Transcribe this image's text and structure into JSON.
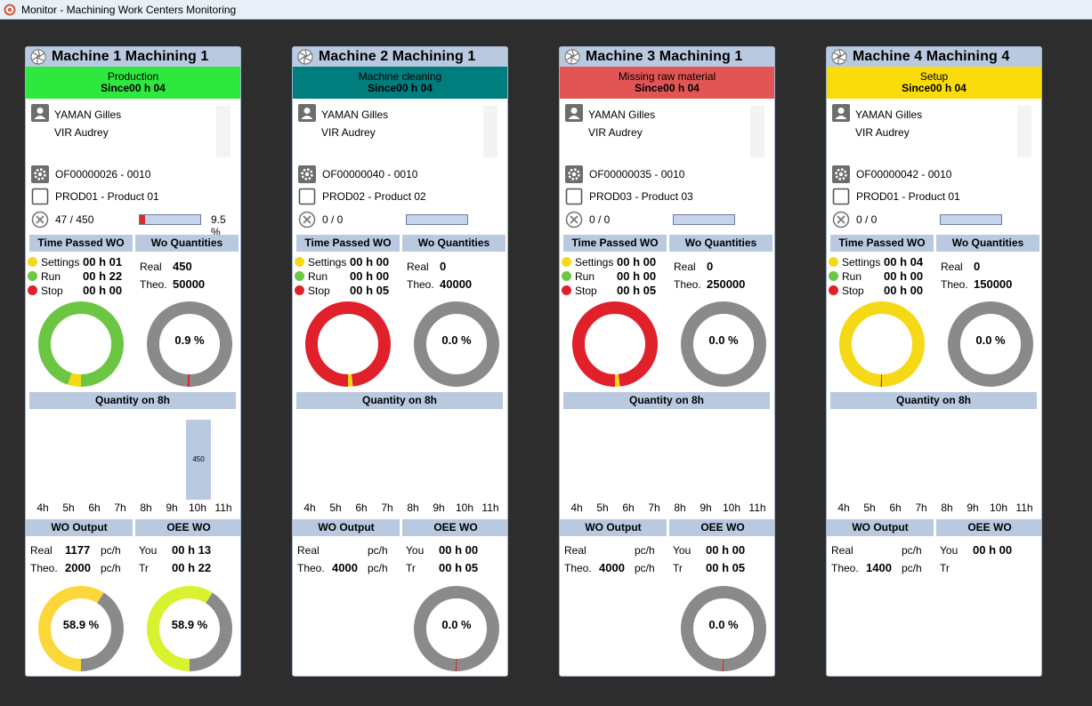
{
  "window": {
    "title": "Monitor - Machining Work Centers Monitoring"
  },
  "labels": {
    "time_passed": "Time Passed WO",
    "wo_quantities": "Wo Quantities",
    "quantity_8h": "Quantity on 8h",
    "wo_output": "WO Output",
    "oee_wo": "OEE WO",
    "settings": "Settings",
    "run": "Run",
    "stop": "Stop",
    "real": "Real",
    "theo": "Theo.",
    "you": "You",
    "tr": "Tr",
    "unit": "pc/h"
  },
  "colors": {
    "settings": "#f5d916",
    "run": "#6cc644",
    "stop": "#e0202a",
    "neutral": "#8a8a8a",
    "header": "#b8c9e0"
  },
  "hours": [
    "4h",
    "5h",
    "6h",
    "7h",
    "8h",
    "9h",
    "10h",
    "11h"
  ],
  "machines": [
    {
      "name": "Machine 1 Machining 1",
      "status": "Production",
      "since": "Since00 h 04",
      "status_color": "#2ee83f",
      "operators": [
        "YAMAN Gilles",
        "VIR Audrey"
      ],
      "of": "OF00000026 - 0010",
      "product": "PROD01 - Product 01",
      "count": "47 / 450",
      "progress_pct": "9.5 %",
      "progress_value": 0.095,
      "settings_time": "00 h 01",
      "run_time": "00 h 22",
      "stop_time": "00 h 00",
      "time_split": {
        "settings": 0.05,
        "run": 0.95,
        "stop": 0.0
      },
      "qty_real": "450",
      "qty_theo": "50000",
      "qty_pct": "0.9 %",
      "qty_value": 0.009,
      "bars": [
        {
          "hour": "10h",
          "value": 450,
          "label": "450"
        }
      ],
      "out_real": "1177",
      "out_theo": "2000",
      "out_unit_real": "pc/h",
      "out_unit_theo": "pc/h",
      "out_pct": "58.9 %",
      "out_value": 0.589,
      "oee_you": "00 h 13",
      "oee_tr": "00 h 22",
      "oee_pct": "58.9 %",
      "oee_value": 0.589,
      "oee_color": "#d8f22f",
      "out_color": "#fcd73a",
      "show_out_donut": true,
      "show_oee_donut": true
    },
    {
      "name": "Machine 2 Machining 1",
      "status": "Machine cleaning",
      "since": "Since00 h 04",
      "status_color": "#007d7d",
      "operators": [
        "YAMAN Gilles",
        "VIR Audrey"
      ],
      "of": "OF00000040 - 0010",
      "product": "PROD02 - Product 02",
      "count": "0 / 0",
      "progress_pct": "",
      "progress_value": 0,
      "settings_time": "00 h 00",
      "run_time": "00 h 00",
      "stop_time": "00 h 05",
      "time_split": {
        "settings": 0.02,
        "run": 0.0,
        "stop": 0.98
      },
      "qty_real": "0",
      "qty_theo": "40000",
      "qty_pct": "0.0 %",
      "qty_value": 0.0,
      "bars": [],
      "out_real": "",
      "out_theo": "4000",
      "out_unit_real": "pc/h",
      "out_unit_theo": "pc/h",
      "out_pct": "",
      "out_value": 0,
      "oee_you": "00 h 00",
      "oee_tr": "00 h 05",
      "oee_pct": "0.0 %",
      "oee_value": 0.0,
      "oee_color": "#e0202a",
      "out_color": "#fcd73a",
      "show_out_donut": false,
      "show_oee_donut": true
    },
    {
      "name": "Machine 3 Machining 1",
      "status": "Missing raw material",
      "since": "Since00 h 04",
      "status_color": "#e25555",
      "operators": [
        "YAMAN Gilles",
        "VIR Audrey"
      ],
      "of": "OF00000035 - 0010",
      "product": "PROD03 - Product 03",
      "count": "0 / 0",
      "progress_pct": "",
      "progress_value": 0,
      "settings_time": "00 h 00",
      "run_time": "00 h 00",
      "stop_time": "00 h 05",
      "time_split": {
        "settings": 0.02,
        "run": 0.0,
        "stop": 0.98
      },
      "qty_real": "0",
      "qty_theo": "250000",
      "qty_pct": "0.0 %",
      "qty_value": 0.0,
      "bars": [],
      "out_real": "",
      "out_theo": "4000",
      "out_unit_real": "pc/h",
      "out_unit_theo": "pc/h",
      "out_pct": "",
      "out_value": 0,
      "oee_you": "00 h 00",
      "oee_tr": "00 h 05",
      "oee_pct": "0.0 %",
      "oee_value": 0.0,
      "oee_color": "#e0202a",
      "out_color": "#fcd73a",
      "show_out_donut": false,
      "show_oee_donut": true
    },
    {
      "name": "Machine 4 Machining 4",
      "status": "Setup",
      "since": "Since00 h 04",
      "status_color": "#fadc0a",
      "operators": [
        "YAMAN Gilles",
        "VIR Audrey"
      ],
      "of": "OF00000042 - 0010",
      "product": "PROD01 - Product 01",
      "count": "0 / 0",
      "progress_pct": "",
      "progress_value": 0,
      "settings_time": "00 h 04",
      "run_time": "00 h 00",
      "stop_time": "00 h 00",
      "time_split": {
        "settings": 0.995,
        "run": 0.0,
        "stop": 0.005
      },
      "qty_real": "0",
      "qty_theo": "150000",
      "qty_pct": "0.0 %",
      "qty_value": 0.0,
      "bars": [],
      "out_real": "",
      "out_theo": "1400",
      "out_unit_real": "pc/h",
      "out_unit_theo": "pc/h",
      "out_pct": "",
      "out_value": 0,
      "oee_you": "00 h 00",
      "oee_tr": "",
      "oee_pct": "",
      "oee_value": 0,
      "oee_color": "#e0202a",
      "out_color": "#fcd73a",
      "show_out_donut": false,
      "show_oee_donut": false
    }
  ]
}
